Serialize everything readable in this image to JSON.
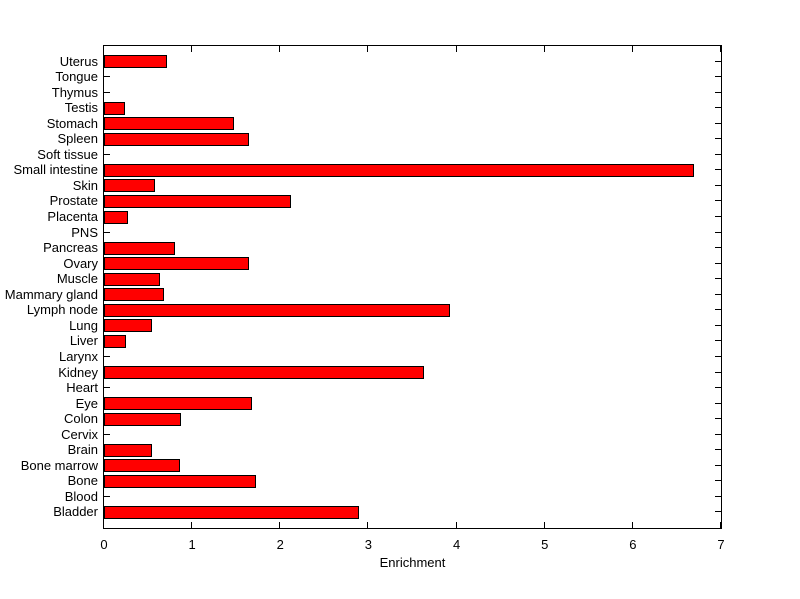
{
  "figure": {
    "background_color": "#ffffff",
    "axis_color": "#000000"
  },
  "chart_data": {
    "type": "bar",
    "orientation": "horizontal",
    "title": "",
    "xlabel": "Enrichment",
    "ylabel": "",
    "xlim": [
      0,
      7
    ],
    "x_ticks": [
      0,
      1,
      2,
      3,
      4,
      5,
      6,
      7
    ],
    "grid": false,
    "legend": "none",
    "bar_color": "#ff0000",
    "bar_edge_color": "#000000",
    "categories": [
      "Uterus",
      "Tongue",
      "Thymus",
      "Testis",
      "Stomach",
      "Spleen",
      "Soft tissue",
      "Small intestine",
      "Skin",
      "Prostate",
      "Placenta",
      "PNS",
      "Pancreas",
      "Ovary",
      "Muscle",
      "Mammary gland",
      "Lymph node",
      "Lung",
      "Liver",
      "Larynx",
      "Kidney",
      "Heart",
      "Eye",
      "Colon",
      "Cervix",
      "Brain",
      "Bone marrow",
      "Bone",
      "Blood",
      "Bladder"
    ],
    "values": [
      0.71,
      0,
      0,
      0.24,
      1.47,
      1.64,
      0,
      6.69,
      0.58,
      2.12,
      0.27,
      0,
      0.8,
      1.65,
      0.63,
      0.68,
      3.93,
      0.55,
      0.25,
      0,
      3.63,
      0,
      1.68,
      0.87,
      0,
      0.54,
      0.86,
      1.72,
      0,
      2.89
    ]
  }
}
